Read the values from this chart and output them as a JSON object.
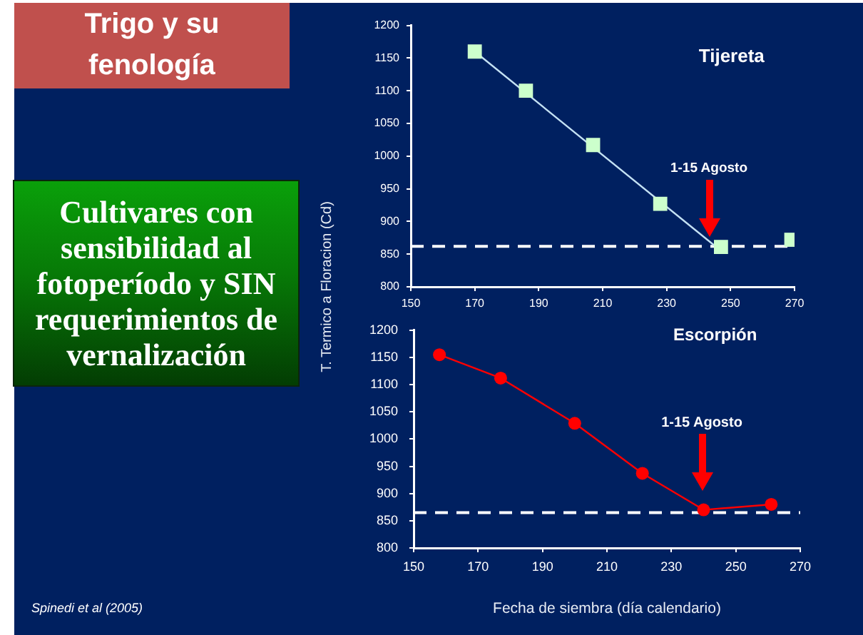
{
  "chart_data": [
    {
      "type": "other",
      "title": "Trigo y su fenología",
      "subtitle": "Cultivares con sensibilidad al fotoperíodo y SIN requerimientos de vernalización",
      "annotations": [
        "Spinedi et al (2005)"
      ]
    },
    {
      "type": "scatter",
      "title": "Tijereta",
      "ylabel": "T. Termico a Floracion (Cd)",
      "xlim": [
        150,
        270
      ],
      "xticks": [
        150,
        170,
        190,
        210,
        230,
        250,
        270
      ],
      "ylim": [
        800,
        1200
      ],
      "yticks": [
        800,
        850,
        900,
        950,
        1000,
        1050,
        1100,
        1150,
        1200
      ],
      "series": [
        {
          "type": "scatter",
          "color": "#ccffcc",
          "marker": "square",
          "x": [
            170,
            186,
            207,
            228,
            247,
            269
          ],
          "values": [
            1160,
            1100,
            1017,
            927,
            861,
            872
          ]
        },
        {
          "type": "line",
          "color": "#c4e2f4",
          "marker": "none",
          "x": [
            170,
            245
          ],
          "values": [
            1160,
            863
          ]
        }
      ],
      "ref_lines": [
        {
          "axis": "y",
          "value": 862,
          "color": "#ffffff",
          "line_style": "dashed"
        }
      ],
      "annotations": [
        "1-15 Agosto"
      ]
    },
    {
      "type": "line",
      "title": "Escorpión",
      "xlabel": "Fecha de siembra (día calendario)",
      "xlim": [
        150,
        270
      ],
      "xticks": [
        150,
        170,
        190,
        210,
        230,
        250,
        270
      ],
      "ylim": [
        800,
        1200
      ],
      "yticks": [
        800,
        850,
        900,
        950,
        1000,
        1050,
        1100,
        1150,
        1200
      ],
      "series": [
        {
          "color": "#ff0000",
          "marker": "circle",
          "x": [
            158,
            177,
            200,
            221,
            240,
            261
          ],
          "values": [
            1155,
            1112,
            1029,
            937,
            870,
            880
          ]
        }
      ],
      "ref_lines": [
        {
          "axis": "y",
          "value": 865,
          "color": "#ffffff",
          "line_style": "dashed"
        }
      ],
      "annotations": [
        "1-15 Agosto"
      ]
    }
  ]
}
